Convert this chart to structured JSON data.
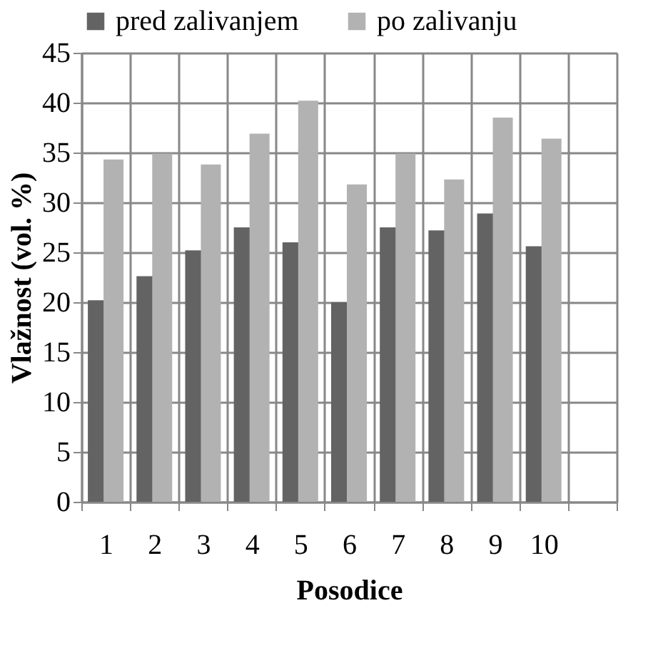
{
  "chart_data": {
    "type": "bar",
    "xlabel": "Posodice",
    "ylabel": "Vlažnost  (vol. %)",
    "categories": [
      "1",
      "2",
      "3",
      "4",
      "5",
      "6",
      "7",
      "8",
      "9",
      "10",
      null
    ],
    "series": [
      {
        "name": "pred zalivanjem",
        "color": "#636363",
        "values": [
          20.2,
          22.6,
          25.2,
          27.5,
          26.0,
          20.0,
          27.5,
          27.2,
          28.9,
          25.6,
          null
        ]
      },
      {
        "name": "po zalivanju",
        "color": "#b2b2b2",
        "values": [
          34.3,
          34.9,
          33.8,
          36.9,
          40.2,
          31.8,
          34.9,
          32.3,
          38.5,
          36.4,
          null
        ]
      }
    ],
    "ylim": [
      0,
      45
    ],
    "yticks": [
      0,
      5,
      10,
      15,
      20,
      25,
      30,
      35,
      40,
      45
    ],
    "grid": true,
    "legend": "top"
  }
}
